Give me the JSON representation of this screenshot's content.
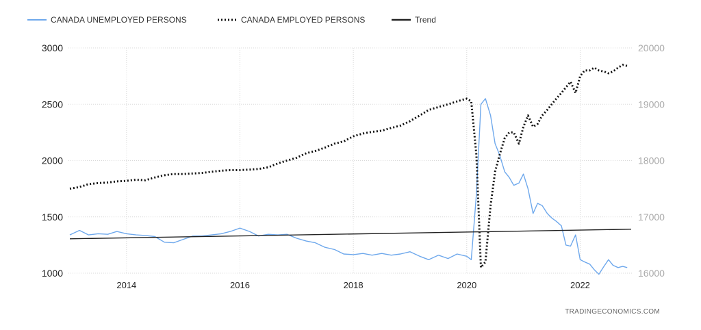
{
  "source_label": "TRADINGECONOMICS.COM",
  "chart_data": {
    "type": "line",
    "grid": true,
    "legend_placement": "top-left",
    "x_ticks": [
      "2014",
      "2016",
      "2018",
      "2020",
      "2022"
    ],
    "xlim": [
      2013.0,
      2022.9
    ],
    "y_left": {
      "lim": [
        1000,
        3000
      ],
      "ticks": [
        "1000",
        "1500",
        "2000",
        "2500",
        "3000"
      ]
    },
    "y_right": {
      "lim": [
        16000,
        20000
      ],
      "ticks": [
        "16000",
        "17000",
        "18000",
        "19000",
        "20000"
      ]
    },
    "series": [
      {
        "name": "CANADA UNEMPLOYED PERSONS",
        "axis": "left",
        "color": "#6ea8ec",
        "style": "solid",
        "x": [
          2013.0,
          2013.17,
          2013.33,
          2013.5,
          2013.67,
          2013.83,
          2014.0,
          2014.17,
          2014.33,
          2014.5,
          2014.67,
          2014.83,
          2015.0,
          2015.17,
          2015.33,
          2015.5,
          2015.67,
          2015.83,
          2016.0,
          2016.17,
          2016.33,
          2016.5,
          2016.67,
          2016.83,
          2017.0,
          2017.17,
          2017.33,
          2017.5,
          2017.67,
          2017.83,
          2018.0,
          2018.17,
          2018.33,
          2018.5,
          2018.67,
          2018.83,
          2019.0,
          2019.17,
          2019.33,
          2019.5,
          2019.67,
          2019.83,
          2020.0,
          2020.08,
          2020.17,
          2020.25,
          2020.33,
          2020.42,
          2020.5,
          2020.58,
          2020.67,
          2020.75,
          2020.83,
          2020.92,
          2021.0,
          2021.08,
          2021.17,
          2021.25,
          2021.33,
          2021.42,
          2021.5,
          2021.58,
          2021.67,
          2021.75,
          2021.83,
          2021.92,
          2022.0,
          2022.08,
          2022.17,
          2022.25,
          2022.33,
          2022.42,
          2022.5,
          2022.58,
          2022.67,
          2022.75,
          2022.83
        ],
        "values": [
          1340,
          1380,
          1340,
          1350,
          1345,
          1370,
          1350,
          1340,
          1335,
          1325,
          1275,
          1270,
          1300,
          1330,
          1330,
          1340,
          1350,
          1370,
          1400,
          1370,
          1330,
          1345,
          1340,
          1345,
          1310,
          1285,
          1270,
          1230,
          1210,
          1170,
          1165,
          1175,
          1160,
          1175,
          1160,
          1170,
          1190,
          1150,
          1120,
          1160,
          1130,
          1170,
          1150,
          1120,
          1700,
          2500,
          2550,
          2400,
          2150,
          2050,
          1900,
          1850,
          1780,
          1800,
          1880,
          1750,
          1530,
          1620,
          1600,
          1530,
          1490,
          1460,
          1420,
          1250,
          1240,
          1340,
          1120,
          1100,
          1080,
          1030,
          990,
          1060,
          1120,
          1070,
          1050,
          1060,
          1050
        ]
      },
      {
        "name": "CANADA EMPLOYED PERSONS",
        "axis": "right",
        "color": "#111111",
        "style": "dotted",
        "x": [
          2013.0,
          2013.17,
          2013.33,
          2013.5,
          2013.67,
          2013.83,
          2014.0,
          2014.17,
          2014.33,
          2014.5,
          2014.67,
          2014.83,
          2015.0,
          2015.17,
          2015.33,
          2015.5,
          2015.67,
          2015.83,
          2016.0,
          2016.17,
          2016.33,
          2016.5,
          2016.67,
          2016.83,
          2017.0,
          2017.17,
          2017.33,
          2017.5,
          2017.67,
          2017.83,
          2018.0,
          2018.17,
          2018.33,
          2018.5,
          2018.67,
          2018.83,
          2019.0,
          2019.17,
          2019.33,
          2019.5,
          2019.67,
          2019.83,
          2020.0,
          2020.08,
          2020.17,
          2020.25,
          2020.33,
          2020.42,
          2020.5,
          2020.58,
          2020.67,
          2020.75,
          2020.83,
          2020.92,
          2021.0,
          2021.08,
          2021.17,
          2021.25,
          2021.33,
          2021.42,
          2021.5,
          2021.58,
          2021.67,
          2021.75,
          2021.83,
          2021.92,
          2022.0,
          2022.08,
          2022.17,
          2022.25,
          2022.33,
          2022.42,
          2022.5,
          2022.58,
          2022.67,
          2022.75,
          2022.83
        ],
        "values": [
          17500,
          17530,
          17580,
          17600,
          17610,
          17630,
          17640,
          17660,
          17650,
          17700,
          17740,
          17760,
          17760,
          17770,
          17780,
          17800,
          17820,
          17830,
          17830,
          17840,
          17850,
          17880,
          17950,
          18000,
          18050,
          18130,
          18170,
          18230,
          18300,
          18340,
          18430,
          18480,
          18510,
          18530,
          18580,
          18620,
          18700,
          18800,
          18900,
          18950,
          19000,
          19050,
          19100,
          19050,
          18100,
          16100,
          16200,
          17200,
          17800,
          18100,
          18400,
          18500,
          18500,
          18300,
          18600,
          18800,
          18600,
          18650,
          18800,
          18900,
          19000,
          19100,
          19200,
          19300,
          19400,
          19200,
          19500,
          19600,
          19600,
          19650,
          19600,
          19580,
          19550,
          19580,
          19650,
          19700,
          19680
        ]
      },
      {
        "name": "Trend",
        "axis": "left",
        "color": "#222222",
        "style": "solid",
        "x": [
          2013.0,
          2022.9
        ],
        "values": [
          1305,
          1390
        ]
      }
    ]
  }
}
